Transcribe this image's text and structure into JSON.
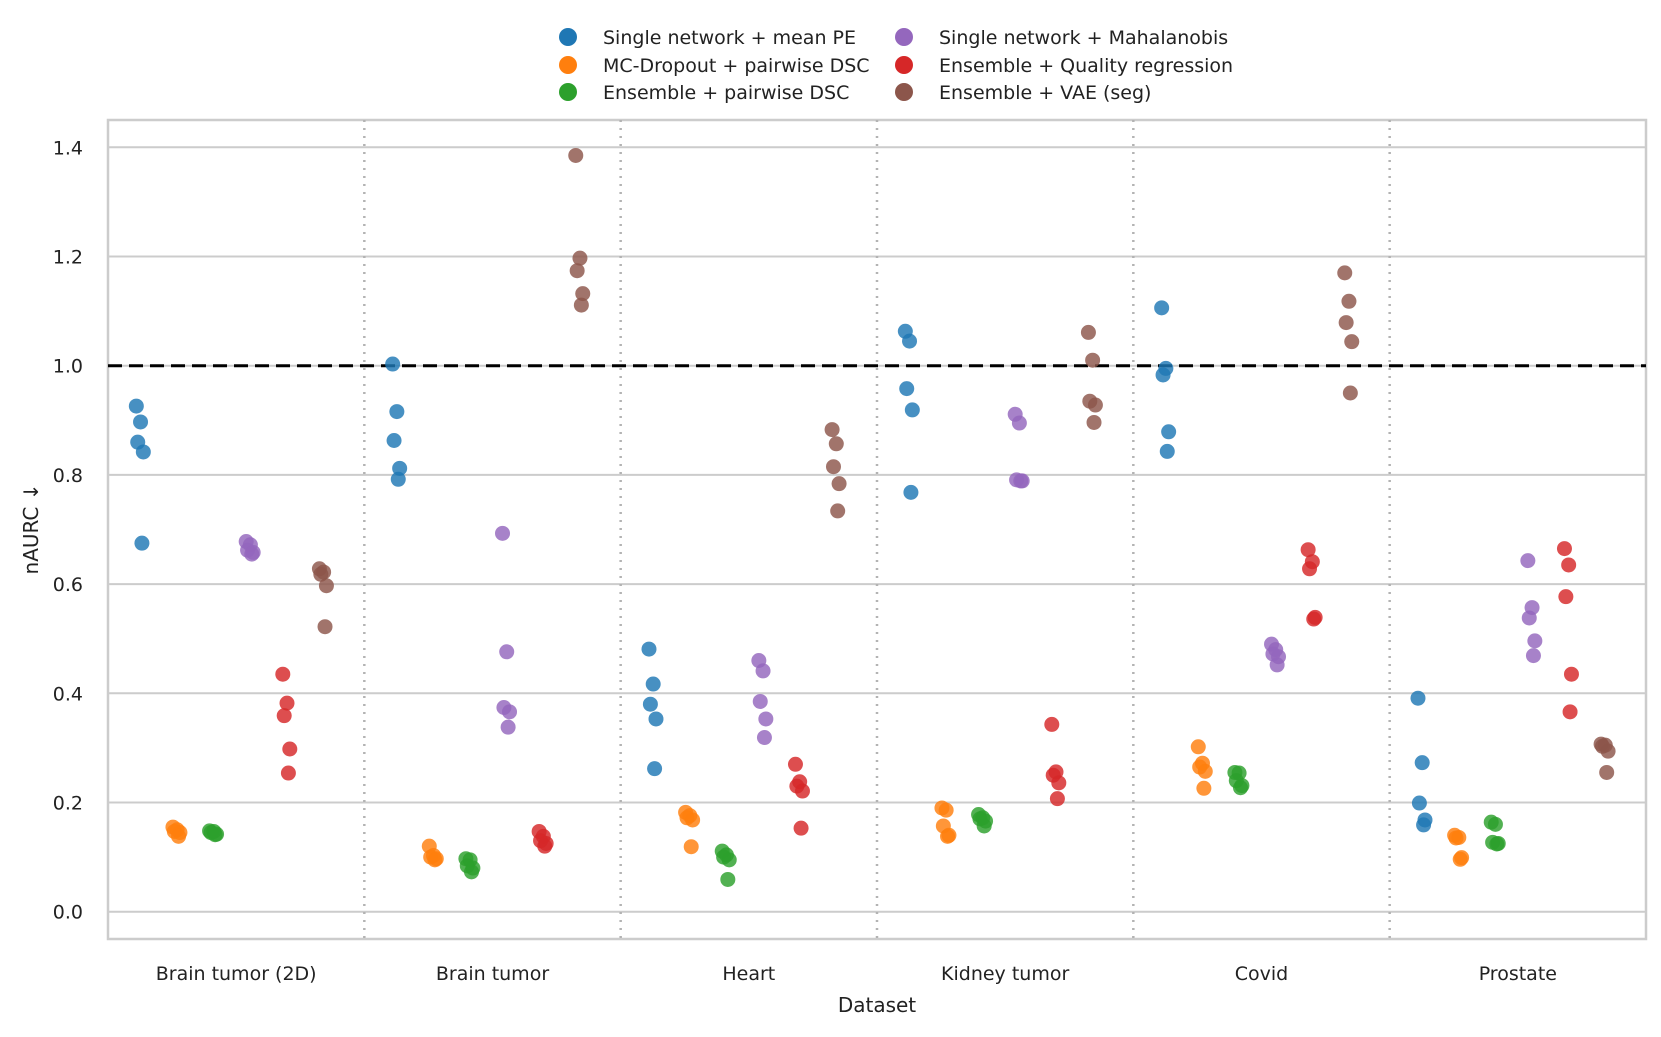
{
  "chart_data": {
    "type": "scatter",
    "title": "",
    "xlabel": "Dataset",
    "ylabel": "nAURC ↓",
    "ylim": [
      -0.05,
      1.45
    ],
    "yticks": [
      "0.0",
      "0.2",
      "0.4",
      "0.6",
      "0.8",
      "1.0",
      "1.2",
      "1.4"
    ],
    "ytick_values": [
      0.0,
      0.2,
      0.4,
      0.6,
      0.8,
      1.0,
      1.2,
      1.4
    ],
    "reference_line": 1.0,
    "grid": true,
    "legend_position": "top-center",
    "categories": [
      "Brain tumor (2D)",
      "Brain tumor",
      "Heart",
      "Kidney tumor",
      "Covid",
      "Prostate"
    ],
    "series": [
      {
        "name": "Single network + mean PE",
        "color": "#1f77b4",
        "values": [
          [
            0.926,
            0.897,
            0.86,
            0.842,
            0.675
          ],
          [
            1.003,
            0.916,
            0.863,
            0.812,
            0.792
          ],
          [
            0.481,
            0.417,
            0.38,
            0.353,
            0.262
          ],
          [
            1.063,
            1.045,
            0.958,
            0.919,
            0.768
          ],
          [
            1.106,
            0.995,
            0.983,
            0.879,
            0.843
          ],
          [
            0.391,
            0.273,
            0.199,
            0.168,
            0.159
          ]
        ]
      },
      {
        "name": "MC-Dropout + pairwise DSC",
        "color": "#ff7f0e",
        "values": [
          [
            0.155,
            0.15,
            0.147,
            0.145,
            0.138
          ],
          [
            0.12,
            0.103,
            0.1,
            0.097,
            0.095
          ],
          [
            0.182,
            0.176,
            0.172,
            0.168,
            0.119
          ],
          [
            0.19,
            0.186,
            0.157,
            0.14,
            0.138
          ],
          [
            0.302,
            0.272,
            0.265,
            0.257,
            0.226
          ],
          [
            0.14,
            0.136,
            0.135,
            0.099,
            0.096
          ]
        ]
      },
      {
        "name": "Ensemble + pairwise DSC",
        "color": "#2ca02c",
        "values": [
          [
            0.148,
            0.147,
            0.145,
            0.142,
            0.141
          ],
          [
            0.097,
            0.095,
            0.084,
            0.08,
            0.073
          ],
          [
            0.111,
            0.104,
            0.1,
            0.095,
            0.059
          ],
          [
            0.178,
            0.172,
            0.17,
            0.166,
            0.157
          ],
          [
            0.255,
            0.254,
            0.24,
            0.231,
            0.227
          ],
          [
            0.164,
            0.16,
            0.127,
            0.125,
            0.124
          ]
        ]
      },
      {
        "name": "Single network + Mahalanobis",
        "color": "#9467bd",
        "values": [
          [
            0.678,
            0.672,
            0.662,
            0.658,
            0.655
          ],
          [
            0.693,
            0.476,
            0.374,
            0.366,
            0.338
          ],
          [
            0.46,
            0.441,
            0.385,
            0.353,
            0.319
          ],
          [
            0.911,
            0.895,
            0.791,
            0.789,
            0.789
          ],
          [
            0.49,
            0.48,
            0.472,
            0.467,
            0.452
          ],
          [
            0.643,
            0.557,
            0.538,
            0.496,
            0.469
          ]
        ]
      },
      {
        "name": "Ensemble + Quality regression",
        "color": "#d62728",
        "values": [
          [
            0.435,
            0.382,
            0.359,
            0.298,
            0.254
          ],
          [
            0.147,
            0.138,
            0.13,
            0.125,
            0.12
          ],
          [
            0.27,
            0.238,
            0.23,
            0.221,
            0.153
          ],
          [
            0.343,
            0.256,
            0.25,
            0.236,
            0.207
          ],
          [
            0.663,
            0.641,
            0.628,
            0.539,
            0.536
          ],
          [
            0.665,
            0.635,
            0.577,
            0.435,
            0.366
          ]
        ]
      },
      {
        "name": "Ensemble + VAE (seg)",
        "color": "#8c564b",
        "values": [
          [
            0.628,
            0.622,
            0.618,
            0.597,
            0.522
          ],
          [
            1.385,
            1.197,
            1.174,
            1.132,
            1.111
          ],
          [
            0.883,
            0.857,
            0.815,
            0.784,
            0.734
          ],
          [
            1.061,
            1.01,
            0.935,
            0.928,
            0.896
          ],
          [
            1.17,
            1.118,
            1.079,
            1.044,
            0.95
          ],
          [
            0.307,
            0.305,
            0.303,
            0.294,
            0.255
          ]
        ]
      }
    ]
  }
}
